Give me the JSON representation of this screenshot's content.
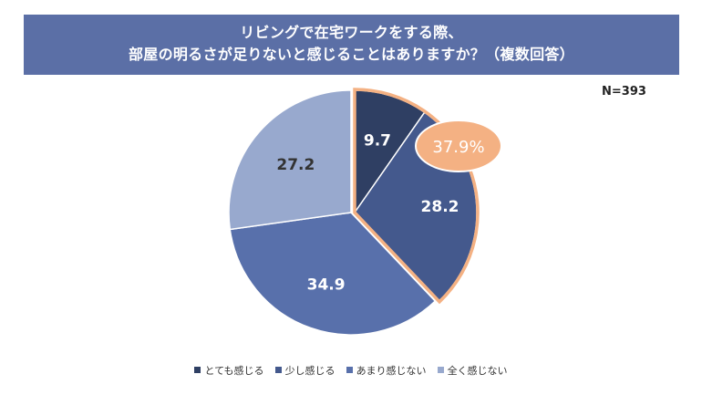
{
  "title": {
    "line1": "リビングで在宅ワークをする際、",
    "line2": "部屋の明るさが足りないと感じることはありますか？（複数回答）"
  },
  "sample_size": "N=393",
  "colors": {
    "banner": "#5b6fa6",
    "highlight": "#f4b183"
  },
  "chart_data": {
    "type": "pie",
    "title": "リビングで在宅ワークをする際、部屋の明るさが足りないと感じることはありますか？（複数回答）",
    "categories": [
      "とても感じる",
      "少し感じる",
      "あまり感じない",
      "全く感じない"
    ],
    "values": [
      9.7,
      28.2,
      34.9,
      27.2
    ],
    "colors": [
      "#2f3f63",
      "#44598d",
      "#5870ab",
      "#98a9ce"
    ],
    "highlight": {
      "label": "37.9%",
      "value": 37.9,
      "categories": [
        "とても感じる",
        "少し感じる"
      ]
    },
    "start_angle": "12 o'clock",
    "direction": "clockwise",
    "legend_position": "bottom"
  }
}
